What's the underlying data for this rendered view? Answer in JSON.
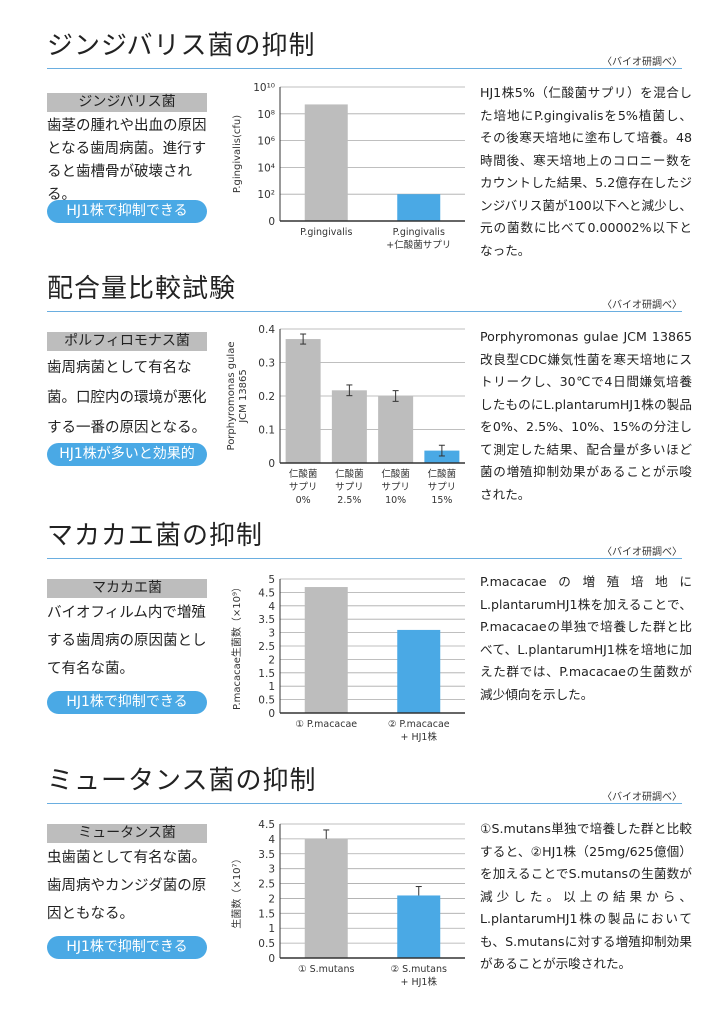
{
  "source_note": "〈バイオ研調べ〉",
  "sections": [
    {
      "title": "ジンジバリス菌の抑制",
      "label": "ジンジバリス菌",
      "description": "歯茎の腫れや出血の原因となる歯周病菌。進行すると歯槽骨が破壊される。",
      "badge": "HJ1株で抑制できる",
      "body": "HJ1株5%（仁酸菌サプリ）を混合した培地にP.gingivalisを5%植菌し、その後寒天培地に塗布して培養。48時間後、寒天培地上のコロニー数をカウントした結果、5.2億存在したジンジバリス菌が100以下へと減少し、元の菌数に比べて0.00002%以下となった。"
    },
    {
      "title": "配合量比較試験",
      "label": "ポルフィロモナス菌",
      "description": "歯周病菌として有名な菌。口腔内の環境が悪化する一番の原因となる。",
      "badge": "HJ1株が多いと効果的",
      "body": "Porphyromonas gulae JCM 13865 改良型CDC嫌気性菌を寒天培地にストリークし、30℃で4日間嫌気培養したものにL.plantarumHJ1株の製品を0%、2.5%、10%、15%の分注して測定した結果、配合量が多いほど菌の増殖抑制効果があることが示唆された。"
    },
    {
      "title": "マカカエ菌の抑制",
      "label": "マカカエ菌",
      "description": "バイオフィルム内で増殖する歯周病の原因菌として有名な菌。",
      "badge": "HJ1株で抑制できる",
      "body": "P.macacaeの増殖培地にL.plantarumHJ1株を加えることで、P.macacaeの単独で培養した群と比べて、L.plantarumHJ1株を培地に加えた群では、P.macacaeの生菌数が減少傾向を示した。"
    },
    {
      "title": "ミュータンス菌の抑制",
      "label": "ミュータンス菌",
      "description": "虫歯菌として有名な菌。歯周病やカンジダ菌の原因ともなる。",
      "badge": "HJ1株で抑制できる",
      "body": "①S.mutans単独で培養した群と比較すると、②HJ1株（25mg/625億個）を加えることでS.mutansの生菌数が減少した。以上の結果から、L.plantarumHJ1株の製品においても、S.mutansに対する増殖抑制効果があることが示唆された。"
    }
  ],
  "colors": {
    "control": "#bdbdbd",
    "treated": "#4aa9e5",
    "accent": "#4aa9e5"
  },
  "chart_data": [
    {
      "type": "bar",
      "scale": "log10",
      "ylabel": [
        "P.gingivalis(cfu)"
      ],
      "ylim": [
        0,
        10
      ],
      "ticks": [
        0,
        2,
        4,
        6,
        8,
        10
      ],
      "tick_labels": [
        "0",
        "10²",
        "10⁴",
        "10⁶",
        "10⁸",
        "10¹⁰"
      ],
      "categories": [
        [
          "P.gingivalis"
        ],
        [
          "P.gingivalis",
          "+仁酸菌サプリ"
        ]
      ],
      "values": [
        8.7,
        2
      ],
      "errors": [
        null,
        null
      ],
      "colors": [
        "control",
        "treated"
      ]
    },
    {
      "type": "bar",
      "ylabel": [
        "Porphyromonas gulae",
        "JCM 13865"
      ],
      "ylim": [
        0,
        0.4
      ],
      "ticks": [
        0,
        0.1,
        0.2,
        0.3,
        0.4
      ],
      "tick_labels": [
        "0",
        "0.1",
        "0.2",
        "0.3",
        "0.4"
      ],
      "categories": [
        [
          "仁酸菌",
          "サプリ",
          "0%"
        ],
        [
          "仁酸菌",
          "サプリ",
          "2.5%"
        ],
        [
          "仁酸菌",
          "サプリ",
          "10%"
        ],
        [
          "仁酸菌",
          "サプリ",
          "15%"
        ]
      ],
      "values": [
        0.37,
        0.217,
        0.2,
        0.037
      ],
      "errors": [
        0.015,
        0.016,
        0.016,
        0.016
      ],
      "colors": [
        "control",
        "control",
        "control",
        "treated"
      ]
    },
    {
      "type": "bar",
      "ylabel": [
        "P.macacae生菌数（×10⁹）"
      ],
      "ylim": [
        0,
        5
      ],
      "ticks": [
        0,
        0.5,
        1,
        1.5,
        2,
        2.5,
        3,
        3.5,
        4,
        4.5,
        5
      ],
      "tick_labels": [
        "0",
        "0.5",
        "1",
        "1.5",
        "2",
        "2.5",
        "3",
        "3.5",
        "4",
        "4.5",
        "5"
      ],
      "categories": [
        [
          "① P.macacae"
        ],
        [
          "② P.macacae",
          "+ HJ1株"
        ]
      ],
      "values": [
        4.7,
        3.1
      ],
      "errors": [
        null,
        null
      ],
      "colors": [
        "control",
        "treated"
      ]
    },
    {
      "type": "bar",
      "ylabel": [
        "生菌数（×10⁷）"
      ],
      "ylim": [
        0,
        4.5
      ],
      "ticks": [
        0,
        0.5,
        1,
        1.5,
        2,
        2.5,
        3,
        3.5,
        4,
        4.5
      ],
      "tick_labels": [
        "0",
        "0.5",
        "1",
        "1.5",
        "2",
        "2.5",
        "3",
        "3.5",
        "4",
        "4.5"
      ],
      "categories": [
        [
          "① S.mutans"
        ],
        [
          "② S.mutans",
          "+ HJ1株"
        ]
      ],
      "values": [
        4.0,
        2.1
      ],
      "errors": [
        0.3,
        0.3
      ],
      "colors": [
        "control",
        "treated"
      ]
    }
  ]
}
